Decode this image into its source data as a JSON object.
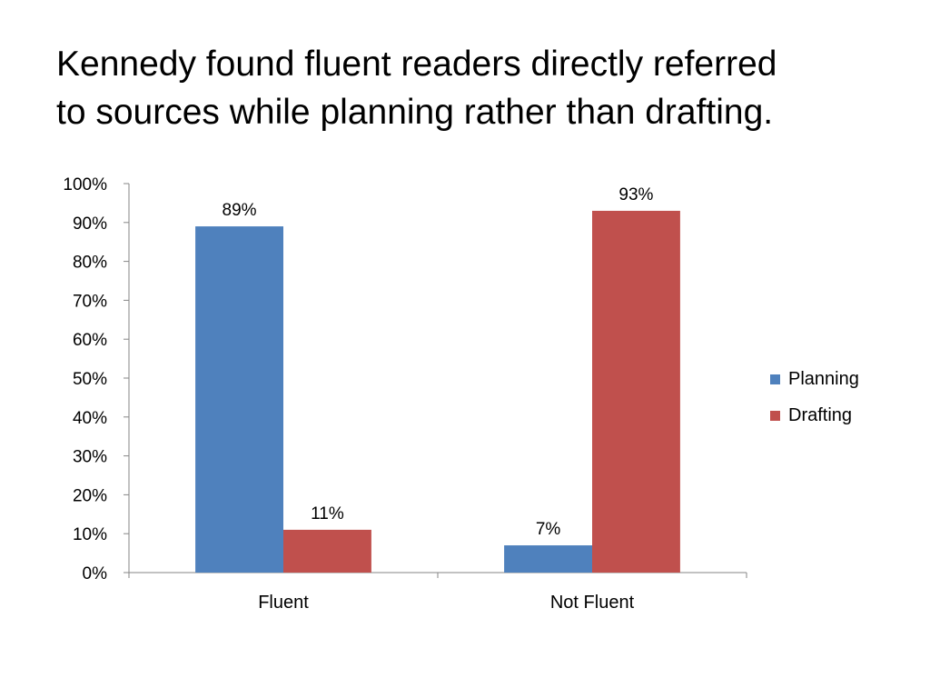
{
  "title": {
    "line1": "Kennedy found fluent readers directly referred",
    "line2": "to sources while planning rather than drafting."
  },
  "chart_data": {
    "type": "bar",
    "categories": [
      "Fluent",
      "Not Fluent"
    ],
    "series": [
      {
        "name": "Planning",
        "values": [
          89,
          7
        ],
        "labels": [
          "89%",
          "7%"
        ],
        "color": "#4f81bd"
      },
      {
        "name": "Drafting",
        "values": [
          11,
          93
        ],
        "labels": [
          "11%",
          "93%"
        ],
        "color": "#c0504d"
      }
    ],
    "ylim": [
      0,
      100
    ],
    "yticks": [
      "0%",
      "10%",
      "20%",
      "30%",
      "40%",
      "50%",
      "60%",
      "70%",
      "80%",
      "90%",
      "100%"
    ],
    "xlabel": "",
    "ylabel": "",
    "grid": false,
    "legend_position": "right"
  }
}
